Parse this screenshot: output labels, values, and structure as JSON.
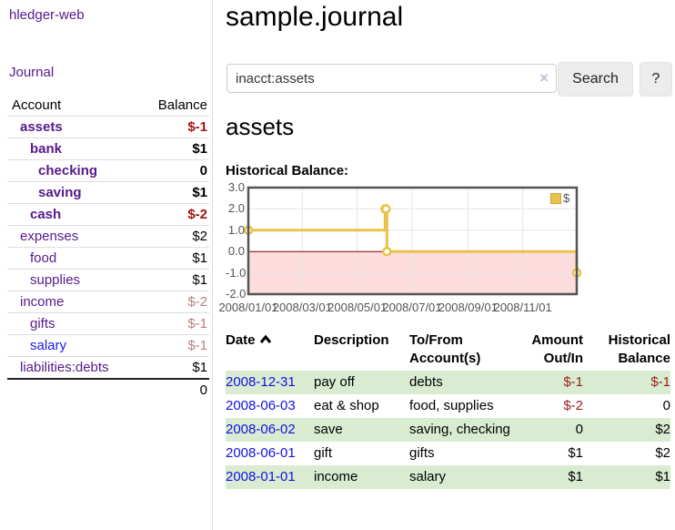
{
  "sidebar": {
    "brand": "hledger-web",
    "nav": {
      "journal": "Journal"
    },
    "table": {
      "account_header": "Account",
      "balance_header": "Balance",
      "rows": [
        {
          "account": "assets",
          "balance": "$-1"
        },
        {
          "account": "bank",
          "balance": "$1"
        },
        {
          "account": "checking",
          "balance": "0"
        },
        {
          "account": "saving",
          "balance": "$1"
        },
        {
          "account": "cash",
          "balance": "$-2"
        },
        {
          "account": "expenses",
          "balance": "$2"
        },
        {
          "account": "food",
          "balance": "$1"
        },
        {
          "account": "supplies",
          "balance": "$1"
        },
        {
          "account": "income",
          "balance": "$-2"
        },
        {
          "account": "gifts",
          "balance": "$-1"
        },
        {
          "account": "salary",
          "balance": "$-1"
        },
        {
          "account": "liabilities:debts",
          "balance": "$1"
        }
      ],
      "total": "0"
    }
  },
  "main": {
    "title": "sample.journal",
    "search": {
      "value": "inacct:assets",
      "clear_icon": "×",
      "button": "Search",
      "help": "?"
    },
    "account_heading": "assets",
    "chart_label": "Historical Balance:"
  },
  "chart_data": {
    "type": "line",
    "step": true,
    "title": "Historical Balance",
    "legend_label": "$",
    "legend_position": "top-right",
    "grid": true,
    "x_range": [
      "2008-01-01",
      "2008-12-31"
    ],
    "ylim": [
      -2,
      3
    ],
    "yticks": [
      {
        "value": 3,
        "label": "3.0"
      },
      {
        "value": 2,
        "label": "2.0"
      },
      {
        "value": 1,
        "label": "1.0"
      },
      {
        "value": 0,
        "label": "0.0"
      },
      {
        "value": -1,
        "label": "-1.0"
      },
      {
        "value": -2,
        "label": "-2.0"
      }
    ],
    "xticks": [
      {
        "date": "2008-01-01",
        "label": "2008/01/01"
      },
      {
        "date": "2008-03-01",
        "label": "2008/03/01"
      },
      {
        "date": "2008-05-01",
        "label": "2008/05/01"
      },
      {
        "date": "2008-07-01",
        "label": "2008/07/01"
      },
      {
        "date": "2008-09-01",
        "label": "2008/09/01"
      },
      {
        "date": "2008-11-01",
        "label": "2008/11/01"
      }
    ],
    "series": [
      {
        "name": "$",
        "points": [
          {
            "date": "2008-01-01",
            "value": 1
          },
          {
            "date": "2008-06-01",
            "value": 2
          },
          {
            "date": "2008-06-02",
            "value": 2
          },
          {
            "date": "2008-06-03",
            "value": 0
          },
          {
            "date": "2008-12-31",
            "value": -1
          }
        ]
      }
    ],
    "colors": {
      "line": "#e9c349",
      "marker_fill": "#ffffff",
      "grid": "#e4e4e4",
      "border": "#545454",
      "zero_line": "#8b0000",
      "negative_region": "#fcdcdc"
    }
  },
  "register": {
    "headers": {
      "date": "Date",
      "description": "Description",
      "tofrom_line1": "To/From",
      "tofrom_line2": "Account(s)",
      "amount_line1": "Amount",
      "amount_line2": "Out/In",
      "hist_line1": "Historical",
      "hist_line2": "Balance"
    },
    "rows": [
      {
        "date": "2008-12-31",
        "description": "pay off",
        "accounts": "debts",
        "amount": "$-1",
        "balance": "$-1"
      },
      {
        "date": "2008-06-03",
        "description": "eat & shop",
        "accounts": "food, supplies",
        "amount": "$-2",
        "balance": "0"
      },
      {
        "date": "2008-06-02",
        "description": "save",
        "accounts": "saving, checking",
        "amount": "0",
        "balance": "$2"
      },
      {
        "date": "2008-06-01",
        "description": "gift",
        "accounts": "gifts",
        "amount": "$1",
        "balance": "$2"
      },
      {
        "date": "2008-01-01",
        "description": "income",
        "accounts": "salary",
        "amount": "$1",
        "balance": "$1"
      }
    ]
  }
}
